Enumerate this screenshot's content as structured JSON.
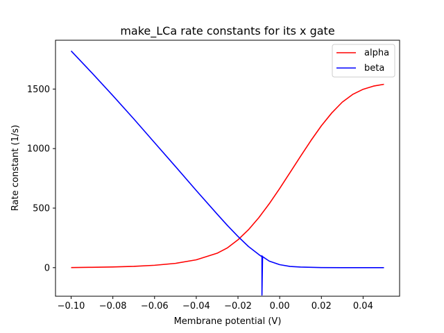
{
  "chart_data": {
    "type": "line",
    "title": "make_LCa rate constants for its x gate",
    "xlabel": "Membrane potential (V)",
    "ylabel": "Rate constant (1/s)",
    "xlim": [
      -0.1075,
      0.0575
    ],
    "ylim": [
      -240,
      1910
    ],
    "xticks": [
      -0.1,
      -0.08,
      -0.06,
      -0.04,
      -0.02,
      0.0,
      0.02,
      0.04
    ],
    "xtick_labels": [
      "−0.10",
      "−0.08",
      "−0.06",
      "−0.04",
      "−0.02",
      "0.00",
      "0.02",
      "0.04"
    ],
    "yticks": [
      0,
      500,
      1000,
      1500
    ],
    "ytick_labels": [
      "0",
      "500",
      "1000",
      "1500"
    ],
    "grid": false,
    "legend_position": "top-right",
    "series": [
      {
        "name": "alpha",
        "color": "#ff0000",
        "x": [
          -0.1,
          -0.09,
          -0.08,
          -0.07,
          -0.06,
          -0.05,
          -0.04,
          -0.03,
          -0.025,
          -0.02,
          -0.015,
          -0.01,
          -0.005,
          0.0,
          0.005,
          0.01,
          0.015,
          0.02,
          0.025,
          0.03,
          0.035,
          0.04,
          0.045,
          0.05
        ],
        "y": [
          1,
          3,
          6,
          11,
          20,
          36,
          66,
          121,
          167,
          234,
          318,
          420,
          537,
          665,
          800,
          935,
          1068,
          1192,
          1300,
          1390,
          1455,
          1498,
          1525,
          1540
        ]
      },
      {
        "name": "beta",
        "color": "#0000ff",
        "x": [
          -0.1,
          -0.09,
          -0.08,
          -0.07,
          -0.06,
          -0.05,
          -0.04,
          -0.03,
          -0.025,
          -0.02,
          -0.015,
          -0.01,
          -0.0088,
          -0.0085,
          -0.0085,
          -0.0082,
          -0.005,
          0.0,
          0.005,
          0.01,
          0.02,
          0.03,
          0.04,
          0.05
        ],
        "y": [
          1820,
          1635,
          1445,
          1250,
          1050,
          850,
          648,
          450,
          353,
          262,
          178,
          110,
          95,
          100,
          -230,
          93,
          55,
          25,
          10,
          5,
          1,
          0,
          0,
          0
        ]
      }
    ]
  }
}
